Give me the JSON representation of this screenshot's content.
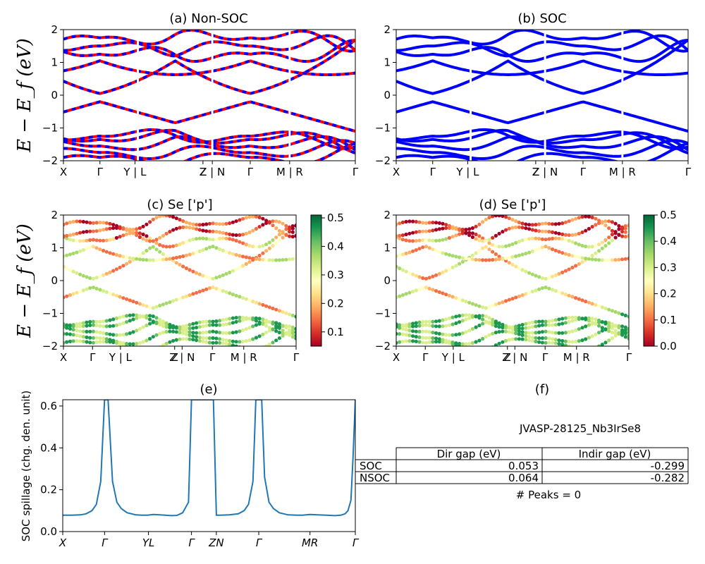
{
  "chart_data": [
    {
      "id": "a",
      "type": "line",
      "title": "(a) Non-SOC",
      "ylabel": "E − E_f (eV)",
      "ylim": [
        -2,
        2
      ],
      "yticks": [
        "2",
        "1",
        "0",
        "−1",
        "−2"
      ],
      "kpath_labels": [
        "X",
        "Γ",
        "Y | L",
        "Z",
        "Z | N",
        "Γ",
        "M | R",
        "Γ"
      ],
      "kpath_positions": [
        0,
        0.125,
        0.245,
        0.478,
        0.51,
        0.64,
        0.775,
        1.0
      ],
      "segment_breaks": [
        0.255,
        0.51,
        0.775
      ],
      "series": [
        {
          "color": "#ff0000",
          "style": "solid"
        },
        {
          "color": "#0000ff",
          "style": "dashed"
        }
      ],
      "bands_eV_at_gamma": [
        -1.9,
        -1.75,
        -1.55,
        -1.35,
        -1.25,
        -0.2,
        0.05,
        1.05,
        1.25,
        1.5,
        1.75
      ]
    },
    {
      "id": "b",
      "type": "line",
      "title": "(b) SOC",
      "ylim": [
        -2,
        2
      ],
      "yticks": [
        "2",
        "1",
        "0",
        "−1",
        "−2"
      ],
      "kpath_labels": [
        "X",
        "Γ",
        "Y | L",
        "Z",
        "Z | N",
        "Γ",
        "M | R",
        "Γ"
      ],
      "series": [
        {
          "color": "#0000ff",
          "style": "solid"
        }
      ]
    },
    {
      "id": "c",
      "type": "scatter",
      "title": "(c)  Se ['p']",
      "ylabel": "E − E_f (eV)",
      "ylim": [
        -2,
        2
      ],
      "yticks": [
        "2",
        "1",
        "0",
        "−1",
        "−2"
      ],
      "kpath_labels": [
        "X",
        "Γ",
        "Y | L",
        "Z",
        "Z | N",
        "Γ",
        "M | R",
        "Γ"
      ],
      "colorbar": {
        "colormap": "RdYlGn",
        "range": [
          0.05,
          0.51
        ],
        "ticks": [
          "0.5",
          "0.4",
          "0.3",
          "0.2",
          "0.1"
        ]
      }
    },
    {
      "id": "d",
      "type": "scatter",
      "title": "(d) Se ['p']",
      "ylim": [
        -2,
        2
      ],
      "yticks": [
        "2",
        "1",
        "0",
        "−1",
        "−2"
      ],
      "kpath_labels": [
        "X",
        "Γ",
        "Y | L",
        "Z",
        "Z | N",
        "Γ",
        "M | R",
        "Γ"
      ],
      "colorbar": {
        "colormap": "RdYlGn",
        "range": [
          0.0,
          0.5
        ],
        "ticks": [
          "0.5",
          "0.4",
          "0.3",
          "0.2",
          "0.1",
          "0.0"
        ]
      }
    },
    {
      "id": "e",
      "type": "line",
      "title": "(e)",
      "ylabel": "SOC spillage (chg. den. unit)",
      "ylim": [
        0.0,
        0.63
      ],
      "yticks": [
        "0.6",
        "0.4",
        "0.2",
        "0.0"
      ],
      "kpath_labels": [
        "X",
        "Γ",
        "YL",
        "Γ",
        "ZN",
        "Γ",
        "MR",
        "Γ"
      ],
      "kpath_positions": [
        0,
        0.143,
        0.293,
        0.44,
        0.525,
        0.67,
        0.845,
        1.0
      ],
      "series": [
        {
          "color": "#1f77b4",
          "x": [
            0,
            0.03,
            0.06,
            0.08,
            0.1,
            0.115,
            0.13,
            0.143,
            0.155,
            0.17,
            0.185,
            0.2,
            0.22,
            0.25,
            0.27,
            0.29,
            0.31,
            0.33,
            0.35,
            0.37,
            0.39,
            0.41,
            0.43,
            0.44,
            0.455,
            0.47,
            0.485,
            0.5,
            0.515,
            0.525,
            0.54,
            0.57,
            0.6,
            0.62,
            0.635,
            0.65,
            0.66,
            0.67,
            0.68,
            0.69,
            0.705,
            0.72,
            0.74,
            0.77,
            0.8,
            0.82,
            0.845,
            0.87,
            0.9,
            0.93,
            0.95,
            0.965,
            0.975,
            0.985,
            0.992,
            1.0
          ],
          "y": [
            0.078,
            0.078,
            0.08,
            0.085,
            0.1,
            0.13,
            0.24,
            0.63,
            0.63,
            0.24,
            0.14,
            0.11,
            0.09,
            0.08,
            0.078,
            0.078,
            0.082,
            0.08,
            0.078,
            0.076,
            0.077,
            0.09,
            0.14,
            0.63,
            0.63,
            0.63,
            0.63,
            0.63,
            0.63,
            0.078,
            0.078,
            0.08,
            0.085,
            0.1,
            0.13,
            0.24,
            0.63,
            0.63,
            0.63,
            0.26,
            0.14,
            0.11,
            0.09,
            0.08,
            0.078,
            0.078,
            0.082,
            0.08,
            0.078,
            0.076,
            0.078,
            0.085,
            0.1,
            0.15,
            0.35,
            0.63
          ]
        }
      ]
    }
  ],
  "panel_f": {
    "title": "(f)",
    "material_id": "JVASP-28125_Nb3IrSe8",
    "table": {
      "columns": [
        "Dir gap (eV)",
        "Indir gap (eV)"
      ],
      "rows": [
        {
          "label": "SOC",
          "dir": "0.053",
          "indir": "-0.299"
        },
        {
          "label": "NSOC",
          "dir": "0.064",
          "indir": "-0.282"
        }
      ]
    },
    "peaks_text": "# Peaks = 0"
  }
}
